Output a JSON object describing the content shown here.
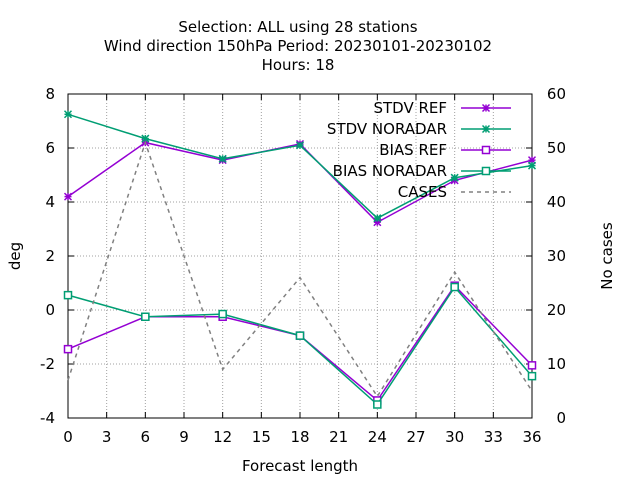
{
  "chart_data": {
    "type": "line",
    "title_lines": [
      "Selection: ALL using    28 stations",
      "Wind direction 150hPa   Period: 20230101-20230102",
      "Hours:  18"
    ],
    "xlabel": "Forecast length",
    "ylabel": "deg",
    "y2label": "No cases",
    "xlim": [
      0,
      36
    ],
    "ylim": [
      -4,
      8
    ],
    "y2lim": [
      0,
      60
    ],
    "xticks": [
      0,
      3,
      6,
      9,
      12,
      15,
      18,
      21,
      24,
      27,
      30,
      33,
      36
    ],
    "yticks": [
      -4,
      -2,
      0,
      2,
      4,
      6,
      8
    ],
    "y2ticks": [
      0,
      10,
      20,
      30,
      40,
      50,
      60
    ],
    "grid": true,
    "legend_position": "top-right",
    "x": [
      0,
      6,
      12,
      18,
      24,
      30,
      36
    ],
    "series": [
      {
        "name": "STDV REF",
        "axis": "y1",
        "color": "#9400d3",
        "dash": "solid",
        "marker": "star",
        "values": [
          4.2,
          6.2,
          5.55,
          6.15,
          3.25,
          4.8,
          5.55
        ]
      },
      {
        "name": "STDV NORADAR",
        "axis": "y1",
        "color": "#009e73",
        "dash": "solid",
        "marker": "star",
        "values": [
          7.25,
          6.35,
          5.6,
          6.1,
          3.4,
          4.9,
          5.35
        ]
      },
      {
        "name": "BIAS REF",
        "axis": "y1",
        "color": "#9400d3",
        "dash": "solid",
        "marker": "square",
        "values": [
          -1.45,
          -0.25,
          -0.25,
          -0.95,
          -3.35,
          0.9,
          -2.05
        ]
      },
      {
        "name": "BIAS NORADAR",
        "axis": "y1",
        "color": "#009e73",
        "dash": "solid",
        "marker": "square",
        "values": [
          0.55,
          -0.25,
          -0.15,
          -0.95,
          -3.5,
          0.85,
          -2.45
        ]
      },
      {
        "name": "CASES",
        "axis": "y2",
        "color": "#808080",
        "dash": "dashed",
        "marker": "none",
        "values": [
          7,
          51,
          9,
          26,
          4,
          27,
          5
        ]
      }
    ]
  }
}
